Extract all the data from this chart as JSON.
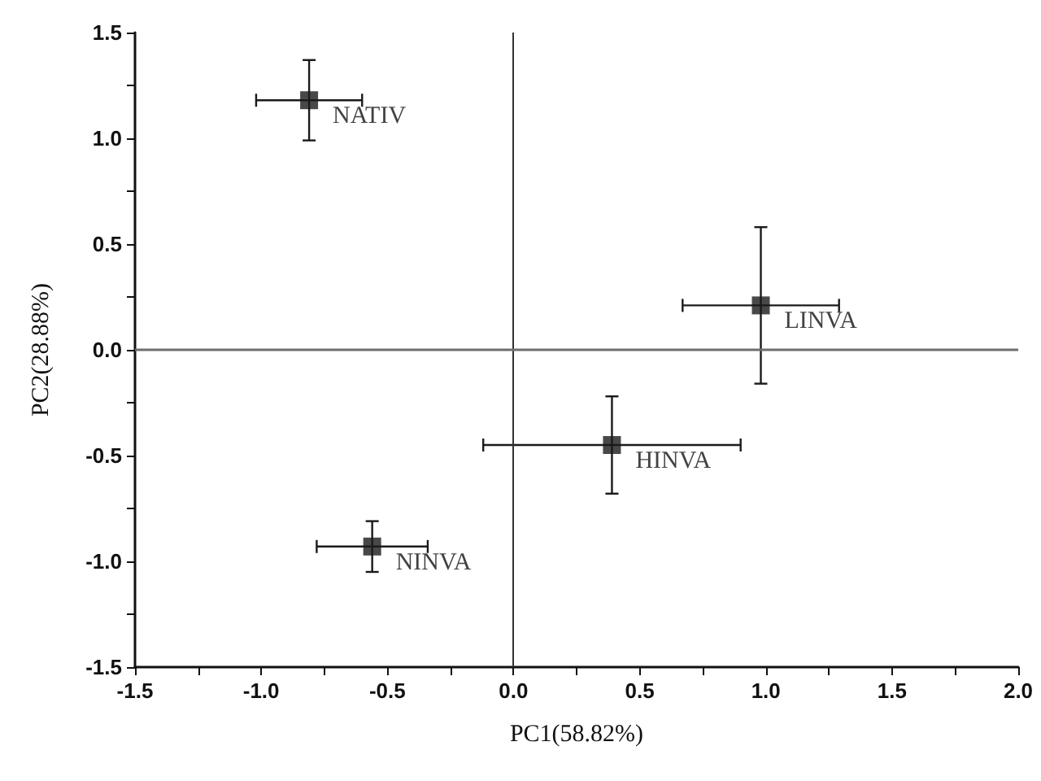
{
  "chart_data": {
    "type": "scatter",
    "xlabel": "PC1(58.82%)",
    "ylabel": "PC2(28.88%)",
    "xlim": [
      -1.5,
      2.0
    ],
    "ylim": [
      -1.5,
      1.5
    ],
    "xticks": [
      -1.5,
      {
        "value": -1.25,
        "label": null
      },
      {
        "value": -1,
        "label": "-1.0"
      },
      {
        "value": -0.75,
        "label": null
      },
      -0.5,
      {
        "value": -0.25,
        "label": null
      },
      {
        "value": 0,
        "label": "0.0"
      },
      {
        "value": 0.25,
        "label": null
      },
      0.5,
      {
        "value": 0.75,
        "label": null
      },
      {
        "value": 1,
        "label": "1.0"
      },
      {
        "value": 1.25,
        "label": null
      },
      1.5,
      {
        "value": 1.75,
        "label": null
      },
      {
        "value": 2,
        "label": "2.0"
      }
    ],
    "yticks": [
      -1.5,
      {
        "value": -1.25,
        "label": null
      },
      {
        "value": -1,
        "label": "-1.0"
      },
      {
        "value": -0.75,
        "label": null
      },
      -0.5,
      {
        "value": -0.25,
        "label": null
      },
      {
        "value": 0,
        "label": "0.0"
      },
      {
        "value": 0.25,
        "label": null
      },
      0.5,
      {
        "value": 0.75,
        "label": null
      },
      {
        "value": 1,
        "label": "1.0"
      },
      {
        "value": 1.25,
        "label": null
      },
      1.5
    ],
    "series": [
      {
        "name": "NATIV",
        "color": "#1a1a1a",
        "x": [
          -0.81
        ],
        "values": [
          1.18
        ],
        "errors": [
          0.19
        ],
        "xerrors": [
          0.21
        ]
      },
      {
        "name": "LINVA",
        "color": "#1a1a1a",
        "x": [
          0.98
        ],
        "values": [
          0.21
        ],
        "errors": [
          0.37
        ],
        "xerrors": [
          0.31
        ]
      },
      {
        "name": "HINVA",
        "color": "#1a1a1a",
        "x": [
          0.39
        ],
        "values": [
          -0.45
        ],
        "errors": [
          0.23
        ],
        "xerrors": [
          0.51
        ]
      },
      {
        "name": "NINVA",
        "color": "#1a1a1a",
        "x": [
          -0.56
        ],
        "values": [
          -0.93
        ],
        "errors": [
          0.12
        ],
        "xerrors": [
          0.22
        ]
      }
    ],
    "ref_lines": [
      {
        "axis": "x",
        "value": 0,
        "color": "#333333"
      },
      {
        "axis": "y",
        "value": 0,
        "color": "#6e6e6e"
      }
    ],
    "marker": "square",
    "grid": false,
    "legend": false
  }
}
